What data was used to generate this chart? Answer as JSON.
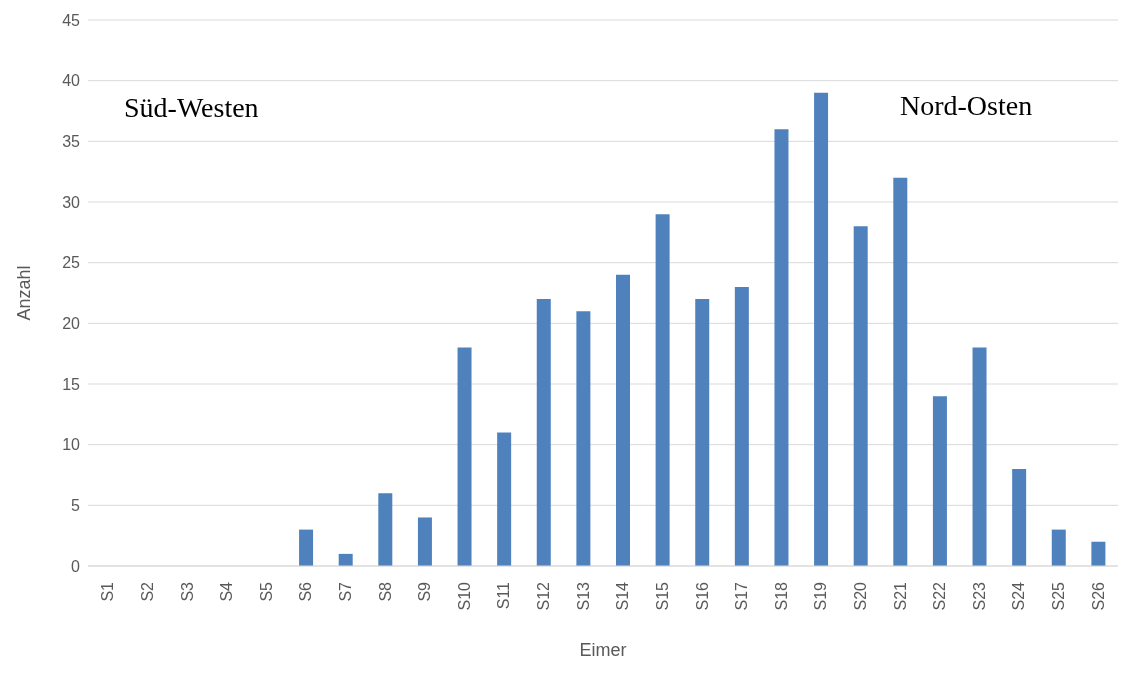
{
  "chart_data": {
    "type": "bar",
    "xlabel": "Eimer",
    "ylabel": "Anzahl",
    "categories": [
      "S1",
      "S2",
      "S3",
      "S4",
      "S5",
      "S6",
      "S7",
      "S8",
      "S9",
      "S10",
      "S11",
      "S12",
      "S13",
      "S14",
      "S15",
      "S16",
      "S17",
      "S18",
      "S19",
      "S20",
      "S21",
      "S22",
      "S23",
      "S24",
      "S25",
      "S26"
    ],
    "values": [
      0,
      0,
      0,
      0,
      0,
      3,
      1,
      6,
      4,
      18,
      11,
      22,
      21,
      24,
      29,
      22,
      23,
      36,
      39,
      28,
      32,
      14,
      18,
      8,
      3,
      2
    ],
    "color": "#4f81bd",
    "ylim": [
      0,
      45
    ],
    "yticks": [
      0,
      5,
      10,
      15,
      20,
      25,
      30,
      35,
      40,
      45
    ],
    "grid": "y",
    "annotations": [
      "Süd-Westen",
      "Nord-Osten"
    ]
  }
}
